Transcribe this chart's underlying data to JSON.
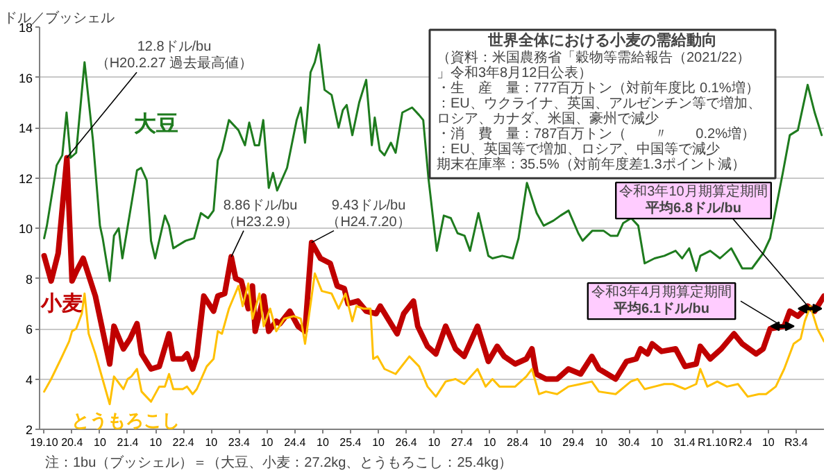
{
  "chart_data": {
    "type": "line",
    "ylabel": "ドル／ブッシェル",
    "xlim": [
      "2007-09-01",
      "2021-10-01"
    ],
    "ylim": [
      2,
      18
    ],
    "yticks": [
      2,
      4,
      6,
      8,
      10,
      12,
      14,
      16,
      18
    ],
    "xticks": [
      {
        "value": "2007-10",
        "label": "19.10"
      },
      {
        "value": "2008-04",
        "label": "20.4"
      },
      {
        "value": "2008-10",
        "label": "10"
      },
      {
        "value": "2009-04",
        "label": "21.4"
      },
      {
        "value": "2009-10",
        "label": "10"
      },
      {
        "value": "2010-04",
        "label": "22.4"
      },
      {
        "value": "2010-10",
        "label": "10"
      },
      {
        "value": "2011-04",
        "label": "23.4"
      },
      {
        "value": "2011-10",
        "label": "10"
      },
      {
        "value": "2012-04",
        "label": "24.4"
      },
      {
        "value": "2012-10",
        "label": "10"
      },
      {
        "value": "2013-04",
        "label": "25.4"
      },
      {
        "value": "2013-10",
        "label": "10"
      },
      {
        "value": "2014-04",
        "label": "26.4"
      },
      {
        "value": "2014-10",
        "label": "10"
      },
      {
        "value": "2015-04",
        "label": "27.4"
      },
      {
        "value": "2015-10",
        "label": "10"
      },
      {
        "value": "2016-04",
        "label": "28.4"
      },
      {
        "value": "2016-10",
        "label": "10"
      },
      {
        "value": "2017-04",
        "label": "29.4"
      },
      {
        "value": "2017-10",
        "label": "10"
      },
      {
        "value": "2018-04",
        "label": "30.4"
      },
      {
        "value": "2018-10",
        "label": "10"
      },
      {
        "value": "2019-04",
        "label": "31.4"
      },
      {
        "value": "2019-10",
        "label": "R1.10"
      },
      {
        "value": "2020-04",
        "label": "R2.4"
      },
      {
        "value": "2020-10",
        "label": "10"
      },
      {
        "value": "2021-04",
        "label": "R3.4"
      }
    ],
    "grid": "y",
    "line_style": "solid",
    "series": [
      {
        "name": "大豆",
        "color": "#1e7b1e",
        "x": [
          "2007-10-01",
          "2007-10-19",
          "2007-12-22",
          "2008-01-28",
          "2008-02-25",
          "2008-03-22",
          "2008-04-28",
          "2008-06-22",
          "2008-08-16",
          "2008-10-01",
          "2008-10-19",
          "2008-12-04",
          "2009-01-01",
          "2009-02-01",
          "2009-02-25",
          "2009-06-01",
          "2009-06-28",
          "2009-08-04",
          "2009-09-01",
          "2009-09-28",
          "2009-12-01",
          "2009-12-28",
          "2010-01-25",
          "2010-04-16",
          "2010-06-10",
          "2010-07-25",
          "2010-09-10",
          "2010-10-16",
          "2010-11-13",
          "2010-12-10",
          "2011-01-25",
          "2011-03-28",
          "2011-05-10",
          "2011-06-07",
          "2011-07-13",
          "2011-08-10",
          "2011-09-07",
          "2011-10-13",
          "2011-11-10",
          "2011-12-07",
          "2012-02-10",
          "2012-04-13",
          "2012-05-10",
          "2012-06-07",
          "2012-07-13",
          "2012-08-10",
          "2012-09-07",
          "2012-10-13",
          "2012-11-28",
          "2013-01-13",
          "2013-02-10",
          "2013-03-07",
          "2013-04-13",
          "2013-05-28",
          "2013-07-13",
          "2013-08-19",
          "2013-09-07",
          "2013-10-10",
          "2013-11-10",
          "2013-12-22",
          "2014-01-22",
          "2014-03-07",
          "2014-05-10",
          "2014-06-25",
          "2014-07-22",
          "2014-08-25",
          "2014-10-19",
          "2014-12-04",
          "2015-01-19",
          "2015-03-04",
          "2015-04-19",
          "2015-05-25",
          "2015-07-19",
          "2015-09-22",
          "2015-10-19",
          "2015-12-22",
          "2016-03-01",
          "2016-04-07",
          "2016-06-01",
          "2016-08-04",
          "2016-09-19",
          "2016-11-22",
          "2017-01-07",
          "2017-03-01",
          "2017-05-04",
          "2017-06-01",
          "2017-08-04",
          "2017-10-16",
          "2017-12-01",
          "2018-01-16",
          "2018-02-22",
          "2018-04-16",
          "2018-06-01",
          "2018-07-13",
          "2018-09-16",
          "2018-11-19",
          "2019-02-01",
          "2019-03-16",
          "2019-05-01",
          "2019-06-16",
          "2019-07-13",
          "2019-09-16",
          "2019-11-19",
          "2020-02-01",
          "2020-04-13",
          "2020-06-16",
          "2020-08-28",
          "2020-10-13",
          "2021-01-04",
          "2021-02-19",
          "2021-04-13",
          "2021-06-16",
          "2021-08-01",
          "2021-09-16"
        ],
        "values": [
          9.6,
          10.1,
          12.5,
          12.9,
          14.6,
          12.8,
          13.0,
          16.6,
          13.5,
          10.1,
          9.6,
          7.9,
          9.7,
          10.0,
          8.8,
          12.3,
          12.4,
          11.9,
          9.5,
          8.8,
          10.5,
          10.1,
          9.2,
          9.5,
          9.6,
          10.6,
          10.4,
          10.7,
          12.7,
          13.1,
          14.3,
          13.9,
          13.3,
          14.2,
          13.3,
          13.3,
          14.3,
          11.6,
          12.2,
          11.5,
          12.4,
          14.3,
          14.8,
          13.4,
          16.2,
          16.6,
          17.3,
          15.5,
          15.3,
          14.0,
          14.7,
          14.9,
          13.7,
          15.0,
          15.9,
          13.3,
          14.4,
          13.1,
          12.9,
          13.4,
          13.0,
          14.6,
          14.8,
          14.5,
          14.3,
          12.0,
          9.1,
          10.5,
          10.4,
          9.8,
          9.7,
          9.1,
          10.6,
          8.9,
          8.8,
          8.9,
          8.8,
          9.6,
          11.8,
          10.6,
          10.1,
          10.3,
          10.5,
          10.7,
          9.8,
          9.5,
          9.9,
          9.9,
          9.7,
          9.7,
          10.2,
          10.4,
          10.1,
          8.6,
          8.8,
          8.9,
          9.1,
          8.8,
          9.2,
          8.3,
          8.9,
          9.1,
          8.8,
          9.2,
          8.4,
          8.4,
          9.0,
          9.6,
          12.2,
          13.7,
          13.9,
          15.7,
          14.6,
          13.7
        ]
      },
      {
        "name": "小麦",
        "color": "#c00000",
        "x": [
          "2007-10-01",
          "2007-11-16",
          "2008-01-01",
          "2008-02-27",
          "2008-04-01",
          "2008-05-01",
          "2008-06-13",
          "2008-09-01",
          "2008-12-04",
          "2009-01-01",
          "2009-03-04",
          "2009-04-16",
          "2009-06-01",
          "2009-07-01",
          "2009-09-01",
          "2009-10-25",
          "2009-12-28",
          "2010-01-25",
          "2010-03-28",
          "2010-04-25",
          "2010-06-01",
          "2010-06-28",
          "2010-08-13",
          "2010-10-16",
          "2010-11-13",
          "2010-12-28",
          "2011-02-09",
          "2011-03-10",
          "2011-04-16",
          "2011-06-01",
          "2011-06-28",
          "2011-07-16",
          "2011-09-10",
          "2011-10-13",
          "2011-12-01",
          "2011-12-25",
          "2012-02-28",
          "2012-04-22",
          "2012-06-07",
          "2012-07-20",
          "2012-09-16",
          "2012-11-19",
          "2013-01-04",
          "2013-02-19",
          "2013-03-16",
          "2013-05-19",
          "2013-07-13",
          "2013-09-16",
          "2013-10-13",
          "2014-02-01",
          "2014-03-16",
          "2014-05-19",
          "2014-06-16",
          "2014-08-19",
          "2014-10-13",
          "2014-12-16",
          "2015-02-19",
          "2015-04-16",
          "2015-07-13",
          "2015-09-22",
          "2015-11-19",
          "2016-01-04",
          "2016-03-16",
          "2016-05-28",
          "2016-07-04",
          "2016-08-01",
          "2016-10-04",
          "2016-12-16",
          "2017-02-28",
          "2017-05-19",
          "2017-08-01",
          "2017-09-16",
          "2018-01-04",
          "2018-03-16",
          "2018-05-19",
          "2018-06-16",
          "2018-08-01",
          "2018-09-01",
          "2018-11-01",
          "2019-02-01",
          "2019-04-04",
          "2019-06-16",
          "2019-07-13",
          "2019-09-16",
          "2019-11-28",
          "2020-02-19",
          "2020-04-13",
          "2020-07-13",
          "2020-08-28",
          "2020-10-13",
          "2021-01-13",
          "2021-02-19",
          "2021-04-13",
          "2021-06-16",
          "2021-08-01",
          "2021-10-01"
        ],
        "values": [
          8.9,
          7.9,
          9.0,
          12.8,
          7.9,
          8.3,
          8.8,
          7.3,
          4.6,
          6.1,
          5.2,
          5.6,
          6.2,
          5.0,
          4.4,
          4.5,
          5.8,
          4.8,
          4.8,
          5.0,
          4.4,
          4.9,
          7.3,
          6.7,
          7.3,
          7.4,
          8.86,
          8.0,
          7.9,
          6.8,
          7.7,
          5.9,
          7.3,
          5.9,
          6.3,
          6.2,
          6.7,
          6.1,
          5.9,
          9.43,
          8.8,
          8.6,
          7.7,
          7.6,
          7.0,
          7.1,
          6.7,
          6.6,
          6.9,
          5.8,
          6.6,
          7.1,
          6.1,
          5.3,
          5.0,
          6.1,
          5.2,
          4.9,
          6.1,
          4.7,
          5.3,
          4.9,
          4.6,
          4.8,
          5.2,
          4.2,
          4.0,
          4.0,
          4.4,
          4.2,
          4.9,
          4.4,
          4.0,
          4.7,
          4.8,
          5.2,
          5.0,
          5.4,
          5.1,
          5.2,
          4.5,
          4.6,
          5.3,
          4.8,
          5.2,
          5.8,
          5.4,
          5.0,
          5.2,
          6.0,
          6.1,
          6.7,
          6.5,
          6.9,
          6.7,
          7.3
        ]
      },
      {
        "name": "とうもろこし",
        "color": "#ffc000",
        "x": [
          "2007-10-01",
          "2007-11-16",
          "2008-01-19",
          "2008-03-13",
          "2008-04-01",
          "2008-04-28",
          "2008-06-04",
          "2008-06-22",
          "2008-07-19",
          "2008-09-01",
          "2008-12-04",
          "2009-01-01",
          "2009-03-04",
          "2009-04-01",
          "2009-04-25",
          "2009-06-01",
          "2009-07-01",
          "2009-09-01",
          "2009-10-25",
          "2009-12-01",
          "2009-12-28",
          "2010-01-25",
          "2010-03-28",
          "2010-04-25",
          "2010-06-01",
          "2010-06-28",
          "2010-09-01",
          "2010-10-16",
          "2010-11-13",
          "2010-12-10",
          "2011-01-25",
          "2011-03-28",
          "2011-04-25",
          "2011-06-01",
          "2011-06-28",
          "2011-08-13",
          "2011-09-10",
          "2011-10-22",
          "2011-12-01",
          "2012-01-22",
          "2012-03-25",
          "2012-05-10",
          "2012-06-07",
          "2012-08-10",
          "2012-09-25",
          "2012-11-28",
          "2013-01-13",
          "2013-02-28",
          "2013-04-13",
          "2013-05-10",
          "2013-06-25",
          "2013-08-10",
          "2013-08-28",
          "2013-09-25",
          "2013-11-10",
          "2014-01-22",
          "2014-04-22",
          "2014-06-25",
          "2014-08-19",
          "2014-10-13",
          "2014-12-16",
          "2015-02-19",
          "2015-04-16",
          "2015-07-13",
          "2015-09-04",
          "2015-10-19",
          "2015-12-04",
          "2016-03-16",
          "2016-05-28",
          "2016-07-04",
          "2016-08-19",
          "2016-10-04",
          "2016-12-16",
          "2017-02-28",
          "2017-05-19",
          "2017-08-01",
          "2017-09-16",
          "2018-01-04",
          "2018-04-13",
          "2018-05-28",
          "2018-07-13",
          "2018-09-16",
          "2018-11-19",
          "2019-01-13",
          "2019-04-04",
          "2019-06-16",
          "2019-07-13",
          "2019-08-28",
          "2019-11-01",
          "2020-01-04",
          "2020-03-16",
          "2020-05-19",
          "2020-08-01",
          "2020-09-16",
          "2020-11-19",
          "2021-01-13",
          "2021-03-16",
          "2021-05-01",
          "2021-05-28",
          "2021-07-04",
          "2021-08-19",
          "2021-10-01"
        ],
        "values": [
          3.5,
          4.0,
          4.8,
          5.5,
          5.9,
          6.0,
          6.6,
          7.4,
          5.8,
          5.0,
          3.0,
          4.1,
          3.6,
          4.0,
          4.1,
          4.4,
          3.5,
          3.1,
          3.7,
          3.7,
          4.2,
          3.6,
          3.6,
          3.7,
          3.4,
          3.6,
          4.5,
          4.8,
          5.9,
          5.8,
          6.8,
          7.7,
          6.9,
          7.8,
          6.4,
          7.4,
          6.1,
          6.8,
          5.9,
          6.4,
          6.5,
          6.4,
          5.4,
          8.2,
          7.5,
          7.4,
          6.8,
          7.4,
          6.3,
          6.9,
          6.8,
          6.8,
          4.8,
          4.9,
          4.4,
          4.2,
          4.9,
          4.5,
          3.7,
          3.3,
          3.9,
          4.0,
          3.8,
          4.4,
          3.7,
          4.0,
          3.7,
          3.7,
          4.1,
          4.4,
          3.4,
          3.5,
          3.4,
          3.7,
          3.8,
          3.9,
          3.5,
          3.4,
          3.9,
          4.0,
          3.6,
          3.7,
          3.8,
          3.8,
          3.6,
          3.8,
          4.4,
          3.7,
          3.9,
          3.7,
          3.8,
          3.3,
          3.4,
          3.4,
          3.7,
          4.4,
          5.4,
          5.6,
          6.3,
          6.9,
          6.0,
          5.5
        ]
      }
    ],
    "annotations": [
      {
        "text": "12.8ドル/bu\n（H20.2.27 過去最高値）",
        "x": "2008-02-27",
        "y": 12.8
      },
      {
        "text": "8.86ドル/bu\n（H23.2.9）",
        "x": "2011-02-09",
        "y": 8.86
      },
      {
        "text": "9.43ドル/bu\n（H24.7.20）",
        "x": "2012-07-20",
        "y": 9.43
      },
      {
        "text": "令和3年10月期算定期間平均6.8ドル/bu",
        "x": "2021-07-01",
        "y": 6.8
      },
      {
        "text": "令和3年4月期算定期間平均6.1ドル/bu",
        "x": "2021-01-01",
        "y": 6.1
      },
      "世界全体における小麦の需給動向",
      "（資料：米国農務省「穀物等需給報告（2021/22）」令和3年8月12日公表）",
      "・生　産　量：777百万トン（対前年度比 0.1%増）",
      "：EU、ウクライナ、英国、アルゼンチン等で増加、ロシア、カナダ、米国、豪州で減少",
      "・消　費　量：787百万トン（　　〃　　0.2%増）",
      "：EU、英国等で増加、ロシア、中国等で減少",
      "期末在庫率：35.5%（対前年度差1.3ポイント減）",
      "注：1bu（ブッシェル）＝（大豆、小麦：27.2kg、とうもろこし：25.4kg）"
    ]
  }
}
